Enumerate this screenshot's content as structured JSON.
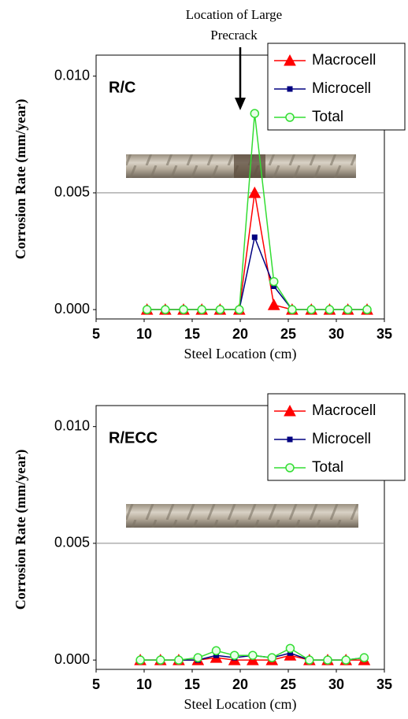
{
  "chart_data": [
    {
      "type": "line",
      "label": "R/C",
      "annotation": "Location of Large Precrack",
      "x_label": "Steel Location (cm)",
      "y_label": "Corrosion Rate (mm/year)",
      "x": [
        10.3,
        12.2,
        14.1,
        16,
        17.9,
        19.9,
        21.5,
        23.5,
        25.4,
        27.4,
        29.3,
        31.2,
        33.2
      ],
      "series": [
        {
          "name": "Macrocell",
          "color": "#ff0000",
          "marker": "triangle",
          "values": [
            0,
            0,
            0,
            0,
            0,
            0,
            0.005,
            0.0002,
            0,
            0,
            0,
            0,
            0
          ]
        },
        {
          "name": "Microcell",
          "color": "#000080",
          "marker": "square",
          "values": [
            0,
            0,
            0,
            0,
            0,
            0,
            0.0031,
            0.001,
            0,
            0,
            0,
            0,
            0
          ]
        },
        {
          "name": "Total",
          "color": "#33dd33",
          "marker": "circle",
          "values": [
            0,
            0,
            0,
            0,
            0,
            0,
            0.0084,
            0.0012,
            0,
            0,
            0,
            0,
            0
          ]
        }
      ],
      "xlim": [
        5,
        35
      ],
      "xticks": [
        5,
        10,
        15,
        20,
        25,
        30,
        35
      ],
      "ylim": [
        -0.0004,
        0.0109
      ],
      "yticks": [
        {
          "value": 0,
          "label": "0.000"
        },
        {
          "value": 0.005,
          "label": "0.005"
        },
        {
          "value": 0.01,
          "label": "0.010"
        }
      ],
      "grid": true,
      "legend": "upper right"
    },
    {
      "type": "line",
      "label": "R/ECC",
      "x_label": "Steel Location (cm)",
      "y_label": "Corrosion Rate (mm/year)",
      "x": [
        9.6,
        11.7,
        13.6,
        15.6,
        17.5,
        19.4,
        21.3,
        23.3,
        25.2,
        27.2,
        29.1,
        31.0,
        32.9
      ],
      "series": [
        {
          "name": "Macrocell",
          "color": "#ff0000",
          "marker": "triangle",
          "values": [
            0,
            0,
            0,
            0,
            0.0001,
            0,
            0,
            0,
            0.0002,
            0,
            0,
            0,
            0
          ]
        },
        {
          "name": "Microcell",
          "color": "#000080",
          "marker": "square",
          "values": [
            0,
            0,
            0,
            0,
            0.0002,
            0.0001,
            0.0002,
            0.0001,
            0.0003,
            0,
            0,
            0,
            0.0001
          ]
        },
        {
          "name": "Total",
          "color": "#33dd33",
          "marker": "circle",
          "values": [
            0,
            0,
            0,
            0.0001,
            0.0004,
            0.0002,
            0.0002,
            0.0001,
            0.0005,
            0,
            0,
            0,
            0.0001
          ]
        }
      ],
      "xlim": [
        5,
        35
      ],
      "xticks": [
        5,
        10,
        15,
        20,
        25,
        30,
        35
      ],
      "ylim": [
        -0.0004,
        0.0109
      ],
      "yticks": [
        {
          "value": 0,
          "label": "0.000"
        },
        {
          "value": 0.005,
          "label": "0.005"
        },
        {
          "value": 0.01,
          "label": "0.010"
        }
      ],
      "grid": true,
      "legend": "upper right"
    }
  ]
}
